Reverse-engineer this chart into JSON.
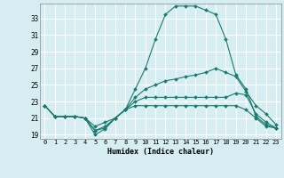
{
  "title": "",
  "xlabel": "Humidex (Indice chaleur)",
  "ylabel": "",
  "bg_color": "#d6eef2",
  "line_color": "#1a7a6e",
  "grid_color": "#ffffff",
  "xlim": [
    -0.5,
    23.5
  ],
  "ylim": [
    18.5,
    34.8
  ],
  "xticks": [
    0,
    1,
    2,
    3,
    4,
    5,
    6,
    7,
    8,
    9,
    10,
    11,
    12,
    13,
    14,
    15,
    16,
    17,
    18,
    19,
    20,
    21,
    22,
    23
  ],
  "yticks": [
    19,
    21,
    23,
    25,
    27,
    29,
    31,
    33
  ],
  "series": [
    [
      22.5,
      21.2,
      21.2,
      21.2,
      21.0,
      19.0,
      19.7,
      21.0,
      22.0,
      24.5,
      27.0,
      30.5,
      33.5,
      34.5,
      34.5,
      34.5,
      34.0,
      33.5,
      30.5,
      26.2,
      24.5,
      21.2,
      20.2,
      19.8
    ],
    [
      22.5,
      21.2,
      21.2,
      21.2,
      21.0,
      19.5,
      20.0,
      21.0,
      22.0,
      23.5,
      24.5,
      25.0,
      25.5,
      25.7,
      26.0,
      26.2,
      26.5,
      27.0,
      26.5,
      26.0,
      24.2,
      22.5,
      21.5,
      20.2
    ],
    [
      22.5,
      21.2,
      21.2,
      21.2,
      21.0,
      20.0,
      20.5,
      21.0,
      22.0,
      23.0,
      23.5,
      23.5,
      23.5,
      23.5,
      23.5,
      23.5,
      23.5,
      23.5,
      23.5,
      24.0,
      23.8,
      21.5,
      20.5,
      19.8
    ],
    [
      22.5,
      21.2,
      21.2,
      21.2,
      21.0,
      19.5,
      19.8,
      21.0,
      22.0,
      22.5,
      22.5,
      22.5,
      22.5,
      22.5,
      22.5,
      22.5,
      22.5,
      22.5,
      22.5,
      22.5,
      22.0,
      21.0,
      20.0,
      19.8
    ]
  ]
}
